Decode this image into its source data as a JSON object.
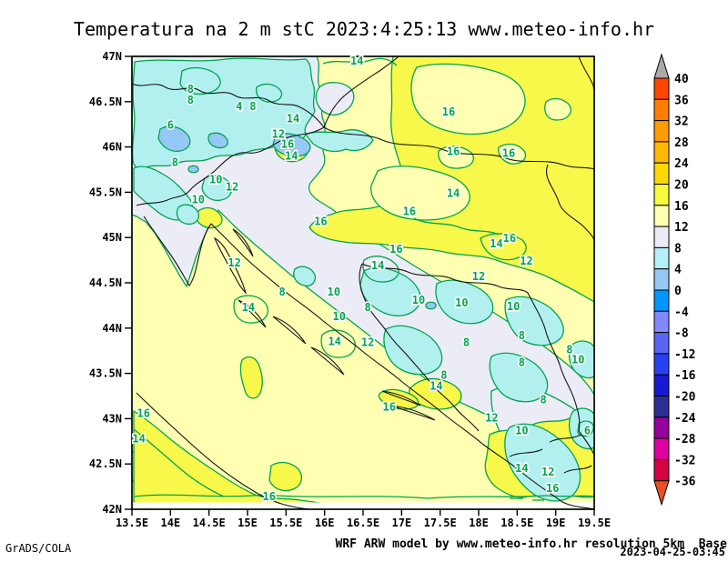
{
  "title": "Temperatura na 2 m stC 2023:4:25:13 www.meteo-info.hr",
  "footer": {
    "credit": "GrADS/COLA",
    "model_info": "WRF ARW model by www.meteo-info.hr resolution 5km  Base",
    "run_datetime": "2023-04-25-03:45"
  },
  "chart_data": {
    "type": "heatmap",
    "subtype": "filled-contour-weather-map",
    "variable": "Temperature at 2 m (stC)",
    "region": "Croatia / Slovenia / Bosnia and Herzegovina / Adriatic",
    "x_axis": {
      "ticks": [
        "13.5E",
        "14E",
        "14.5E",
        "15E",
        "15.5E",
        "16E",
        "16.5E",
        "17E",
        "17.5E",
        "18E",
        "18.5E",
        "19E",
        "19.5E"
      ],
      "range": [
        13.5,
        19.5
      ]
    },
    "y_axis": {
      "ticks": [
        "42N",
        "42.5N",
        "43N",
        "43.5N",
        "44N",
        "44.5N",
        "45N",
        "45.5N",
        "46N",
        "46.5N",
        "47N"
      ],
      "range": [
        42,
        47
      ]
    },
    "contour_interval": 2,
    "fill_interval": 4,
    "contour_line_color": "#00A44E",
    "border_line_color": "#141414",
    "colorbar": {
      "levels": [
        40,
        36,
        32,
        28,
        24,
        20,
        16,
        12,
        8,
        4,
        0,
        -4,
        -8,
        -12,
        -16,
        -20,
        -24,
        -28,
        -32,
        -36
      ],
      "band_colors_top_to_bottom": [
        "#FF4500",
        "#FF7E00",
        "#FF9C00",
        "#FFB900",
        "#FFD700",
        "#F8F83C",
        "#FFFFB2",
        "#EBEBF5",
        "#B4F0F5",
        "#96C8F5",
        "#0096FF",
        "#8287FA",
        "#5A64F5",
        "#2841F0",
        "#1919D2",
        "#2D2D96",
        "#96009B",
        "#E100A0",
        "#D70041"
      ],
      "above_max_color": "#AAAAAA",
      "below_min_color": "#E8501E"
    },
    "map_fill_bands": {
      "0-4": "#96C8F5",
      "4-8": "#B2F0F0",
      "8-12": "#ECECF6",
      "12-16": "#FFFFB2",
      "16-20": "#F8F84A"
    },
    "contour_labels": [
      [
        16.42,
        46.95,
        "14"
      ],
      [
        14.26,
        46.64,
        "8"
      ],
      [
        14.26,
        46.52,
        "8"
      ],
      [
        14.89,
        46.45,
        "4"
      ],
      [
        15.07,
        46.45,
        "8"
      ],
      [
        14.0,
        46.24,
        "6"
      ],
      [
        15.59,
        46.31,
        "14"
      ],
      [
        15.4,
        46.14,
        "12"
      ],
      [
        15.52,
        46.03,
        "16"
      ],
      [
        15.57,
        45.9,
        "14"
      ],
      [
        14.06,
        45.83,
        "8"
      ],
      [
        14.59,
        45.64,
        "10"
      ],
      [
        14.8,
        45.56,
        "12"
      ],
      [
        14.36,
        45.42,
        "10"
      ],
      [
        15.95,
        45.18,
        "16"
      ],
      [
        17.61,
        46.39,
        "16"
      ],
      [
        17.67,
        45.95,
        "16"
      ],
      [
        18.39,
        45.93,
        "16"
      ],
      [
        17.67,
        45.49,
        "14"
      ],
      [
        17.1,
        45.29,
        "16"
      ],
      [
        16.93,
        44.87,
        "16"
      ],
      [
        18.23,
        44.93,
        "14"
      ],
      [
        18.4,
        44.99,
        "16"
      ],
      [
        18.62,
        44.74,
        "12"
      ],
      [
        16.69,
        44.69,
        "14"
      ],
      [
        18.0,
        44.57,
        "12"
      ],
      [
        17.22,
        44.31,
        "10"
      ],
      [
        17.78,
        44.28,
        "10"
      ],
      [
        18.45,
        44.24,
        "10"
      ],
      [
        17.84,
        43.84,
        "8"
      ],
      [
        18.56,
        43.92,
        "8"
      ],
      [
        18.56,
        43.62,
        "8"
      ],
      [
        19.18,
        43.76,
        "8"
      ],
      [
        19.29,
        43.65,
        "10"
      ],
      [
        17.55,
        43.48,
        "8"
      ],
      [
        17.45,
        43.36,
        "14"
      ],
      [
        16.84,
        43.13,
        "16"
      ],
      [
        14.83,
        44.72,
        "12"
      ],
      [
        15.45,
        44.4,
        "8"
      ],
      [
        16.12,
        44.4,
        "10"
      ],
      [
        16.19,
        44.13,
        "10"
      ],
      [
        15.01,
        44.23,
        "14"
      ],
      [
        16.56,
        43.84,
        "12"
      ],
      [
        16.13,
        43.85,
        "14"
      ],
      [
        16.56,
        44.23,
        "8"
      ],
      [
        13.65,
        43.06,
        "16"
      ],
      [
        13.59,
        42.78,
        "14"
      ],
      [
        15.28,
        42.14,
        "16"
      ],
      [
        18.17,
        43.01,
        "12"
      ],
      [
        18.56,
        42.87,
        "10"
      ],
      [
        18.84,
        43.21,
        "8"
      ],
      [
        19.41,
        42.87,
        "6"
      ],
      [
        18.56,
        42.45,
        "14"
      ],
      [
        18.9,
        42.41,
        "12"
      ],
      [
        18.96,
        42.23,
        "16"
      ]
    ]
  }
}
